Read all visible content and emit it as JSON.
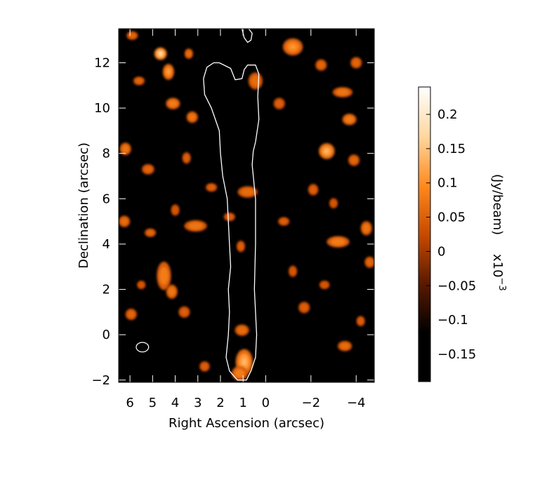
{
  "chart_data": {
    "type": "heatmap",
    "title": "",
    "xlabel": "Right Ascension (arcsec)",
    "ylabel": "Declination (arcsec)",
    "xlim": [
      6.5,
      -4.8
    ],
    "ylim": [
      -2.1,
      13.5
    ],
    "x_ticks": [
      {
        "value": 6,
        "label": "6"
      },
      {
        "value": 5,
        "label": "5"
      },
      {
        "value": 4,
        "label": "4"
      },
      {
        "value": 3,
        "label": "3"
      },
      {
        "value": 2,
        "label": "2"
      },
      {
        "value": 1,
        "label": "1"
      },
      {
        "value": 0,
        "label": "0"
      },
      {
        "value": -2,
        "label": "−2"
      },
      {
        "value": -4,
        "label": "−4"
      }
    ],
    "y_ticks": [
      {
        "value": -2,
        "label": "−2"
      },
      {
        "value": 0,
        "label": "0"
      },
      {
        "value": 2,
        "label": "2"
      },
      {
        "value": 4,
        "label": "4"
      },
      {
        "value": 6,
        "label": "6"
      },
      {
        "value": 8,
        "label": "8"
      },
      {
        "value": 10,
        "label": "10"
      },
      {
        "value": 12,
        "label": "12"
      }
    ],
    "colorbar": {
      "label": "(Jy/beam)",
      "scale_label": "x10",
      "scale_exponent": "−3",
      "range": [
        -0.19,
        0.24
      ],
      "ticks": [
        {
          "value": 0.2,
          "label": "0.2"
        },
        {
          "value": 0.15,
          "label": "0.15"
        },
        {
          "value": 0.1,
          "label": "0.1"
        },
        {
          "value": 0.05,
          "label": "0.05"
        },
        {
          "value": 0,
          "label": "0"
        },
        {
          "value": -0.05,
          "label": "−0.05"
        },
        {
          "value": -0.1,
          "label": "−0.1"
        },
        {
          "value": -0.15,
          "label": "−0.15"
        }
      ],
      "colors": [
        "#000000",
        "#000000",
        "#5a1a00",
        "#c84a00",
        "#ff8a1e",
        "#ffd7a0",
        "#ffffff"
      ]
    },
    "contour": {
      "color": "#ffffff",
      "points": [
        [
          2.05,
          12.0
        ],
        [
          1.55,
          11.75
        ],
        [
          1.35,
          11.25
        ],
        [
          1.05,
          11.3
        ],
        [
          0.95,
          11.7
        ],
        [
          0.8,
          11.9
        ],
        [
          0.45,
          11.9
        ],
        [
          0.3,
          11.5
        ],
        [
          0.35,
          10.5
        ],
        [
          0.3,
          9.5
        ],
        [
          0.45,
          8.5
        ],
        [
          0.55,
          8.1
        ],
        [
          0.6,
          7.5
        ],
        [
          0.45,
          6.0
        ],
        [
          0.45,
          4.0
        ],
        [
          0.5,
          2.0
        ],
        [
          0.4,
          0.0
        ],
        [
          0.45,
          -1.0
        ],
        [
          0.65,
          -1.6
        ],
        [
          0.85,
          -2.0
        ],
        [
          1.25,
          -2.0
        ],
        [
          1.6,
          -1.6
        ],
        [
          1.75,
          -1.0
        ],
        [
          1.65,
          0.0
        ],
        [
          1.6,
          1.0
        ],
        [
          1.65,
          2.0
        ],
        [
          1.55,
          3.0
        ],
        [
          1.6,
          4.0
        ],
        [
          1.65,
          5.0
        ],
        [
          1.7,
          6.0
        ],
        [
          1.9,
          7.0
        ],
        [
          2.0,
          8.0
        ],
        [
          2.05,
          9.0
        ],
        [
          2.4,
          10.0
        ],
        [
          2.7,
          10.6
        ],
        [
          2.75,
          11.3
        ],
        [
          2.6,
          11.8
        ],
        [
          2.3,
          12.0
        ],
        [
          2.05,
          12.0
        ]
      ],
      "top_fragment": [
        [
          1.05,
          13.5
        ],
        [
          0.95,
          13.1
        ],
        [
          0.8,
          12.9
        ],
        [
          0.65,
          13.0
        ],
        [
          0.6,
          13.3
        ],
        [
          0.75,
          13.5
        ]
      ]
    },
    "beam": {
      "x": 5.45,
      "y": -0.55,
      "major": 0.55,
      "minor": 0.42
    },
    "blobs": [
      {
        "x": 4.65,
        "y": 12.4,
        "sx": 0.22,
        "sy": 0.22,
        "v": 0.18
      },
      {
        "x": 4.3,
        "y": 11.6,
        "sx": 0.2,
        "sy": 0.28,
        "v": 0.12
      },
      {
        "x": 3.4,
        "y": 12.4,
        "sx": 0.15,
        "sy": 0.18,
        "v": 0.08
      },
      {
        "x": 0.45,
        "y": 11.2,
        "sx": 0.25,
        "sy": 0.3,
        "v": 0.08
      },
      {
        "x": -1.2,
        "y": 12.7,
        "sx": 0.35,
        "sy": 0.3,
        "v": 0.11
      },
      {
        "x": -2.45,
        "y": 11.9,
        "sx": 0.2,
        "sy": 0.2,
        "v": 0.07
      },
      {
        "x": -3.4,
        "y": 10.7,
        "sx": 0.35,
        "sy": 0.18,
        "v": 0.09
      },
      {
        "x": -3.7,
        "y": 9.5,
        "sx": 0.25,
        "sy": 0.2,
        "v": 0.1
      },
      {
        "x": -2.7,
        "y": 8.1,
        "sx": 0.28,
        "sy": 0.28,
        "v": 0.14
      },
      {
        "x": 3.25,
        "y": 9.6,
        "sx": 0.2,
        "sy": 0.2,
        "v": 0.09
      },
      {
        "x": 4.1,
        "y": 10.2,
        "sx": 0.25,
        "sy": 0.2,
        "v": 0.1
      },
      {
        "x": 6.2,
        "y": 8.2,
        "sx": 0.2,
        "sy": 0.22,
        "v": 0.09
      },
      {
        "x": 5.2,
        "y": 7.3,
        "sx": 0.22,
        "sy": 0.18,
        "v": 0.07
      },
      {
        "x": 6.25,
        "y": 5.0,
        "sx": 0.2,
        "sy": 0.2,
        "v": 0.08
      },
      {
        "x": 5.1,
        "y": 4.5,
        "sx": 0.2,
        "sy": 0.15,
        "v": 0.07
      },
      {
        "x": 3.1,
        "y": 4.8,
        "sx": 0.4,
        "sy": 0.2,
        "v": 0.09
      },
      {
        "x": 0.8,
        "y": 6.3,
        "sx": 0.35,
        "sy": 0.2,
        "v": 0.08
      },
      {
        "x": -3.2,
        "y": 4.1,
        "sx": 0.4,
        "sy": 0.2,
        "v": 0.1
      },
      {
        "x": -4.45,
        "y": 4.7,
        "sx": 0.2,
        "sy": 0.25,
        "v": 0.09
      },
      {
        "x": -4.6,
        "y": 3.2,
        "sx": 0.18,
        "sy": 0.2,
        "v": 0.07
      },
      {
        "x": 4.5,
        "y": 2.6,
        "sx": 0.25,
        "sy": 0.5,
        "v": 0.1
      },
      {
        "x": 4.15,
        "y": 1.9,
        "sx": 0.2,
        "sy": 0.25,
        "v": 0.09
      },
      {
        "x": 3.6,
        "y": 1.0,
        "sx": 0.2,
        "sy": 0.2,
        "v": 0.06
      },
      {
        "x": 1.6,
        "y": 5.2,
        "sx": 0.2,
        "sy": 0.15,
        "v": 0.06
      },
      {
        "x": 1.1,
        "y": 3.9,
        "sx": 0.15,
        "sy": 0.2,
        "v": 0.06
      },
      {
        "x": 1.05,
        "y": 0.2,
        "sx": 0.25,
        "sy": 0.2,
        "v": 0.08
      },
      {
        "x": 0.95,
        "y": -1.2,
        "sx": 0.3,
        "sy": 0.45,
        "v": 0.14
      },
      {
        "x": 1.15,
        "y": -1.7,
        "sx": 0.28,
        "sy": 0.25,
        "v": 0.1
      },
      {
        "x": -3.5,
        "y": -0.5,
        "sx": 0.25,
        "sy": 0.18,
        "v": 0.08
      },
      {
        "x": -4.2,
        "y": 0.6,
        "sx": 0.15,
        "sy": 0.18,
        "v": 0.06
      },
      {
        "x": -1.7,
        "y": 1.2,
        "sx": 0.2,
        "sy": 0.2,
        "v": 0.06
      },
      {
        "x": 5.95,
        "y": 0.9,
        "sx": 0.2,
        "sy": 0.2,
        "v": 0.07
      },
      {
        "x": 2.7,
        "y": -1.4,
        "sx": 0.18,
        "sy": 0.18,
        "v": 0.06
      },
      {
        "x": 3.5,
        "y": 7.8,
        "sx": 0.15,
        "sy": 0.2,
        "v": 0.06
      },
      {
        "x": 2.4,
        "y": 6.5,
        "sx": 0.2,
        "sy": 0.15,
        "v": 0.06
      },
      {
        "x": -0.8,
        "y": 5.0,
        "sx": 0.2,
        "sy": 0.15,
        "v": 0.06
      },
      {
        "x": -2.1,
        "y": 6.4,
        "sx": 0.18,
        "sy": 0.2,
        "v": 0.06
      },
      {
        "x": -3.9,
        "y": 7.7,
        "sx": 0.2,
        "sy": 0.2,
        "v": 0.07
      },
      {
        "x": -0.6,
        "y": 10.2,
        "sx": 0.2,
        "sy": 0.2,
        "v": 0.06
      },
      {
        "x": 5.6,
        "y": 11.2,
        "sx": 0.2,
        "sy": 0.15,
        "v": 0.07
      },
      {
        "x": 5.9,
        "y": 13.2,
        "sx": 0.2,
        "sy": 0.15,
        "v": 0.07
      },
      {
        "x": -4.0,
        "y": 12.0,
        "sx": 0.2,
        "sy": 0.2,
        "v": 0.07
      },
      {
        "x": -1.2,
        "y": 2.8,
        "sx": 0.15,
        "sy": 0.2,
        "v": 0.05
      },
      {
        "x": 4.0,
        "y": 5.5,
        "sx": 0.15,
        "sy": 0.2,
        "v": 0.05
      },
      {
        "x": 5.5,
        "y": 2.2,
        "sx": 0.15,
        "sy": 0.15,
        "v": 0.05
      },
      {
        "x": -2.6,
        "y": 2.2,
        "sx": 0.18,
        "sy": 0.15,
        "v": 0.05
      },
      {
        "x": -3.0,
        "y": 5.8,
        "sx": 0.15,
        "sy": 0.18,
        "v": 0.05
      }
    ]
  }
}
